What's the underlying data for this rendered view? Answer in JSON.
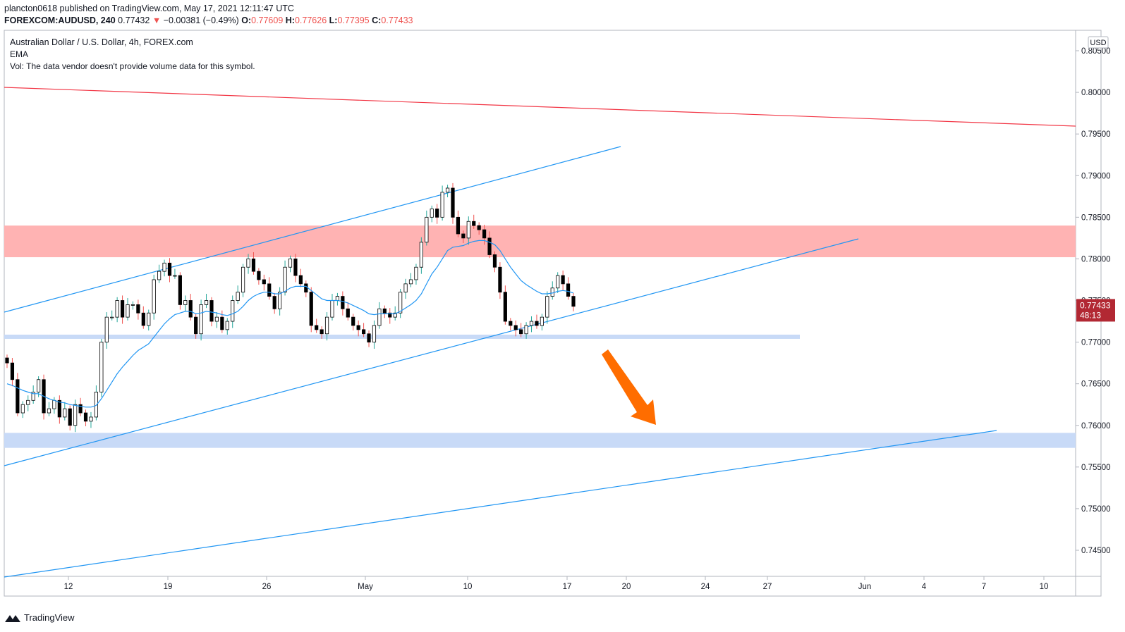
{
  "header": {
    "publisher_line": "plancton0618 published on TradingView.com, May 17, 2021 12:11:47 UTC",
    "symbol": "FOREXCOM:AUDUSD, 240",
    "last": "0.77432",
    "change": "−0.00381 (−0.49%)",
    "o_label": "O:",
    "o_value": "0.77609",
    "h_label": "H:",
    "h_value": "0.77626",
    "l_label": "L:",
    "l_value": "0.77395",
    "c_label": "C:",
    "c_value": "0.77433"
  },
  "legend": {
    "title": "Australian Dollar / U.S. Dollar, 4h, FOREX.com",
    "ema": "EMA",
    "vol": "Vol: The data vendor doesn't provide volume data for this symbol."
  },
  "footer": {
    "brand": "TradingView"
  },
  "colors": {
    "up": "#26a69a",
    "down": "#ef5350",
    "candle": "#000000",
    "ema": "#2196f3",
    "trendline": "#2196f3",
    "resistance_line": "#f23645",
    "resistance_zone": "#ffb3b3",
    "support_zone": "#c8daf7",
    "arrow": "#ff6d00",
    "price_label": "#b22833"
  },
  "chart_data": {
    "type": "candlestick",
    "title": "Australian Dollar / U.S. Dollar, 4h, FOREX.com",
    "currency": "USD",
    "y_ticks": [
      "0.80500",
      "0.80000",
      "0.79500",
      "0.79000",
      "0.78500",
      "0.78000",
      "0.77500",
      "0.77000",
      "0.76500",
      "0.76000",
      "0.75500",
      "0.75000",
      "0.74500"
    ],
    "ylim": [
      0.7417,
      0.8075
    ],
    "x_ticks": [
      "12",
      "19",
      "26",
      "May",
      "10",
      "17",
      "20",
      "24",
      "27",
      "Jun",
      "4",
      "7",
      "10"
    ],
    "current_price": "0.77433",
    "countdown": "48:13",
    "close_series": [
      0.7675,
      0.7655,
      0.7615,
      0.7625,
      0.763,
      0.764,
      0.7655,
      0.7615,
      0.762,
      0.763,
      0.761,
      0.762,
      0.76,
      0.7625,
      0.7615,
      0.7605,
      0.761,
      0.764,
      0.77,
      0.773,
      0.773,
      0.775,
      0.773,
      0.7745,
      0.7745,
      0.7735,
      0.772,
      0.7735,
      0.7775,
      0.7785,
      0.7795,
      0.778,
      0.778,
      0.7745,
      0.775,
      0.773,
      0.771,
      0.7745,
      0.775,
      0.7725,
      0.773,
      0.7715,
      0.7725,
      0.775,
      0.776,
      0.779,
      0.78,
      0.7785,
      0.7775,
      0.777,
      0.7755,
      0.774,
      0.776,
      0.779,
      0.78,
      0.778,
      0.777,
      0.776,
      0.772,
      0.7715,
      0.771,
      0.773,
      0.775,
      0.7755,
      0.774,
      0.773,
      0.772,
      0.7715,
      0.771,
      0.77,
      0.772,
      0.774,
      0.7735,
      0.773,
      0.7735,
      0.776,
      0.777,
      0.7775,
      0.779,
      0.782,
      0.785,
      0.786,
      0.785,
      0.788,
      0.7885,
      0.785,
      0.783,
      0.7825,
      0.7845,
      0.784,
      0.7835,
      0.7825,
      0.7805,
      0.779,
      0.776,
      0.7725,
      0.772,
      0.7715,
      0.771,
      0.772,
      0.7725,
      0.772,
      0.773,
      0.7755,
      0.7765,
      0.778,
      0.777,
      0.7755,
      0.7743
    ],
    "ema_series": [
      0.765,
      0.7648,
      0.7645,
      0.7642,
      0.764,
      0.7638,
      0.7638,
      0.7635,
      0.7632,
      0.763,
      0.7628,
      0.7627,
      0.7625,
      0.7624,
      0.7623,
      0.7622,
      0.7622,
      0.7624,
      0.7632,
      0.7642,
      0.7652,
      0.7662,
      0.767,
      0.7677,
      0.7684,
      0.769,
      0.7694,
      0.7698,
      0.7706,
      0.7714,
      0.7722,
      0.7728,
      0.7733,
      0.7735,
      0.7737,
      0.7737,
      0.7734,
      0.7735,
      0.7737,
      0.7736,
      0.7735,
      0.7733,
      0.7732,
      0.7734,
      0.7737,
      0.7743,
      0.775,
      0.7755,
      0.7758,
      0.776,
      0.776,
      0.7758,
      0.7758,
      0.7761,
      0.7765,
      0.7767,
      0.7767,
      0.7767,
      0.7762,
      0.7757,
      0.7752,
      0.775,
      0.775,
      0.775,
      0.7749,
      0.7747,
      0.7744,
      0.7741,
      0.7738,
      0.7734,
      0.7733,
      0.7734,
      0.7734,
      0.7734,
      0.7734,
      0.7737,
      0.7741,
      0.7745,
      0.775,
      0.7758,
      0.777,
      0.7782,
      0.779,
      0.78,
      0.781,
      0.7814,
      0.7815,
      0.7816,
      0.7819,
      0.7821,
      0.7822,
      0.7822,
      0.782,
      0.7817,
      0.781,
      0.78,
      0.779,
      0.7782,
      0.7774,
      0.7769,
      0.7765,
      0.7761,
      0.7758,
      0.7758,
      0.7759,
      0.7761,
      0.7762,
      0.7761,
      0.7759
    ],
    "annotations": {
      "resistance_zone": [
        0.7802,
        0.784
      ],
      "support_zone_upper": [
        0.7704,
        0.7709
      ],
      "support_zone_lower": [
        0.7573,
        0.7591
      ]
    }
  }
}
